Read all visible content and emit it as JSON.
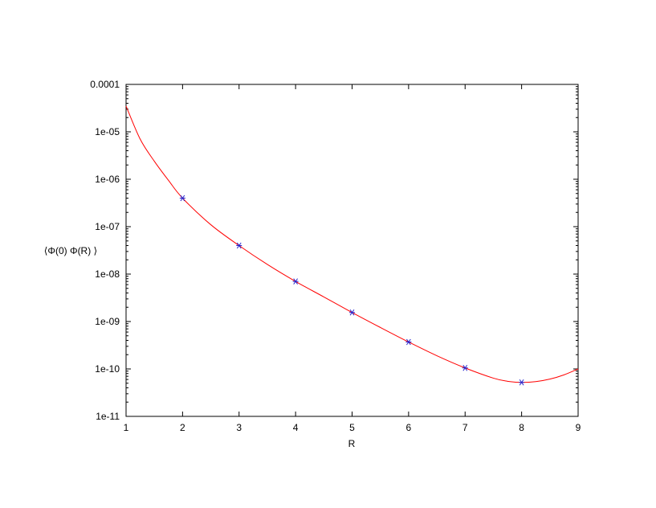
{
  "chart_data": {
    "type": "scatter",
    "title": "",
    "xlabel": "R",
    "ylabel": "⟨Φ(0) Φ(R) ⟩",
    "xlim": [
      1,
      9
    ],
    "ylim": [
      1e-11,
      0.0001
    ],
    "yscale": "log",
    "xticks": [
      "1",
      "2",
      "3",
      "4",
      "5",
      "6",
      "7",
      "8",
      "9"
    ],
    "yticks": [
      "1e-11",
      "1e-10",
      "1e-09",
      "1e-08",
      "1e-07",
      "1e-06",
      "1e-05",
      "0.0001"
    ],
    "grid": false,
    "legend": "none",
    "series": [
      {
        "kind": "points",
        "marker": "asterisk",
        "color": "#2222cc",
        "x": [
          2,
          3,
          4,
          5,
          6,
          7,
          8
        ],
        "y": [
          4e-07,
          4e-08,
          7e-09,
          1.55e-09,
          3.7e-10,
          1.05e-10,
          5.2e-11
        ]
      },
      {
        "kind": "fit-curve",
        "color": "#ff0000",
        "x": [
          1.0,
          1.25,
          1.5,
          1.75,
          2.0,
          2.5,
          3.0,
          3.5,
          4.0,
          4.5,
          5.0,
          5.5,
          6.0,
          6.5,
          7.0,
          7.5,
          7.75,
          8.0,
          8.25,
          8.5,
          8.75,
          9.0
        ],
        "y": [
          3.5e-05,
          7e-06,
          2.4e-06,
          9.5e-07,
          4e-07,
          1.1e-07,
          4e-08,
          1.6e-08,
          7e-09,
          3.3e-09,
          1.55e-09,
          7.5e-10,
          3.7e-10,
          1.9e-10,
          1.05e-10,
          6.4e-11,
          5.5e-11,
          5.2e-11,
          5.4e-11,
          6.1e-11,
          7.5e-11,
          1e-10
        ]
      }
    ]
  }
}
